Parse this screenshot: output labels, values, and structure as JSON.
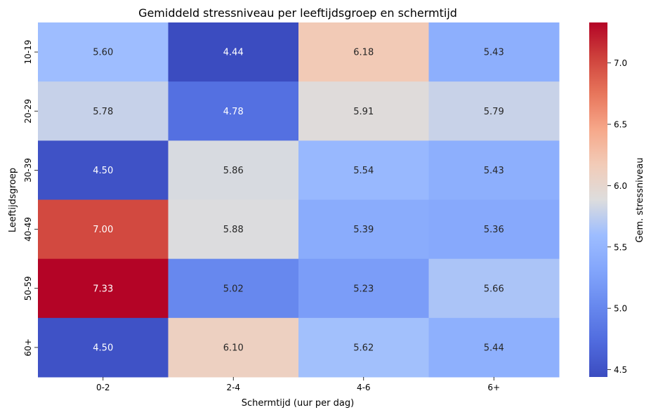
{
  "chart_data": {
    "type": "heatmap",
    "title": "Gemiddeld stressniveau per leeftijdsgroep en schermtijd",
    "xlabel": "Schermtijd (uur per dag)",
    "ylabel": "Leeftijdsgroep",
    "x_categories": [
      "0-2",
      "2-4",
      "4-6",
      "6+"
    ],
    "y_categories": [
      "10-19",
      "20-29",
      "30-39",
      "40-49",
      "50-59",
      "60+"
    ],
    "values": [
      [
        5.6,
        4.44,
        6.18,
        5.43
      ],
      [
        5.78,
        4.78,
        5.91,
        5.79
      ],
      [
        4.5,
        5.86,
        5.54,
        5.43
      ],
      [
        7.0,
        5.88,
        5.39,
        5.36
      ],
      [
        7.33,
        5.02,
        5.23,
        5.66
      ],
      [
        4.5,
        6.1,
        5.62,
        5.44
      ]
    ],
    "colormap": "coolwarm",
    "colorbar": {
      "label": "Gem. stressniveau",
      "min": 4.44,
      "max": 7.33,
      "ticks": [
        "4.5",
        "5.0",
        "5.5",
        "6.0",
        "6.5",
        "7.0"
      ]
    }
  }
}
